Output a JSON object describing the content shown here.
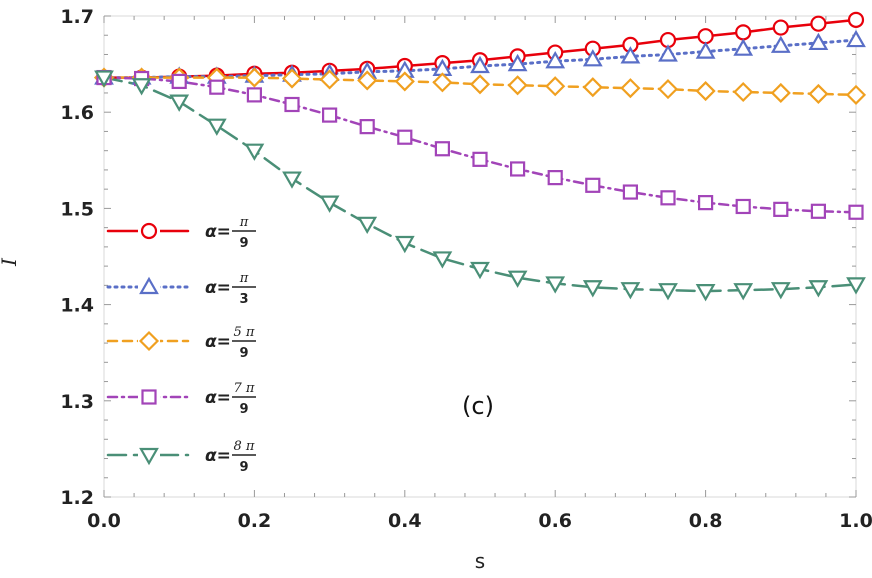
{
  "chart_data": {
    "type": "line",
    "xlabel": "s",
    "ylabel": "I",
    "xlim": [
      0,
      1.0
    ],
    "ylim": [
      1.2,
      1.7
    ],
    "x_ticks": [
      "0.0",
      "0.2",
      "0.4",
      "0.6",
      "0.8",
      "1.0"
    ],
    "y_ticks": [
      "1.2",
      "1.3",
      "1.4",
      "1.5",
      "1.6",
      "1.7"
    ],
    "annotation": "(c)",
    "legend_position": "left",
    "x": [
      0,
      0.05,
      0.1,
      0.15,
      0.2,
      0.25,
      0.3,
      0.35,
      0.4,
      0.45,
      0.5,
      0.55,
      0.6,
      0.65,
      0.7,
      0.75,
      0.8,
      0.85,
      0.9,
      0.95,
      1.0
    ],
    "series": [
      {
        "legend_prefix": "α=",
        "legend_num": "π",
        "legend_den": "9",
        "color": "#e8000b",
        "line_style": "solid",
        "marker": "circle",
        "values": [
          1.636,
          1.636,
          1.637,
          1.638,
          1.64,
          1.641,
          1.643,
          1.645,
          1.648,
          1.651,
          1.654,
          1.658,
          1.662,
          1.666,
          1.67,
          1.675,
          1.679,
          1.683,
          1.688,
          1.692,
          1.696
        ]
      },
      {
        "legend_prefix": "α=",
        "legend_num": "π",
        "legend_den": "3",
        "color": "#5a6fc7",
        "line_style": "dotted",
        "marker": "triangle-up",
        "values": [
          1.636,
          1.636,
          1.637,
          1.637,
          1.638,
          1.639,
          1.64,
          1.642,
          1.643,
          1.645,
          1.648,
          1.65,
          1.653,
          1.655,
          1.658,
          1.66,
          1.663,
          1.666,
          1.669,
          1.672,
          1.675
        ]
      },
      {
        "legend_prefix": "α=",
        "legend_num": "5 π",
        "legend_den": "9",
        "color": "#f0a020",
        "line_style": "dashed",
        "marker": "diamond",
        "values": [
          1.636,
          1.636,
          1.636,
          1.636,
          1.636,
          1.635,
          1.634,
          1.633,
          1.632,
          1.631,
          1.629,
          1.628,
          1.627,
          1.626,
          1.625,
          1.624,
          1.622,
          1.621,
          1.62,
          1.619,
          1.618
        ]
      },
      {
        "legend_prefix": "α=",
        "legend_num": "7 π",
        "legend_den": "9",
        "color": "#a244b8",
        "line_style": "dashdot",
        "marker": "square",
        "values": [
          1.636,
          1.635,
          1.632,
          1.626,
          1.618,
          1.608,
          1.597,
          1.585,
          1.574,
          1.562,
          1.551,
          1.541,
          1.532,
          1.524,
          1.517,
          1.511,
          1.506,
          1.502,
          1.499,
          1.497,
          1.496
        ]
      },
      {
        "legend_prefix": "α=",
        "legend_num": "8 π",
        "legend_den": "9",
        "color": "#4a8f77",
        "line_style": "longdash",
        "marker": "triangle-down",
        "values": [
          1.636,
          1.628,
          1.611,
          1.586,
          1.56,
          1.531,
          1.506,
          1.484,
          1.464,
          1.448,
          1.437,
          1.428,
          1.422,
          1.418,
          1.416,
          1.415,
          1.414,
          1.415,
          1.416,
          1.418,
          1.421
        ]
      }
    ]
  }
}
